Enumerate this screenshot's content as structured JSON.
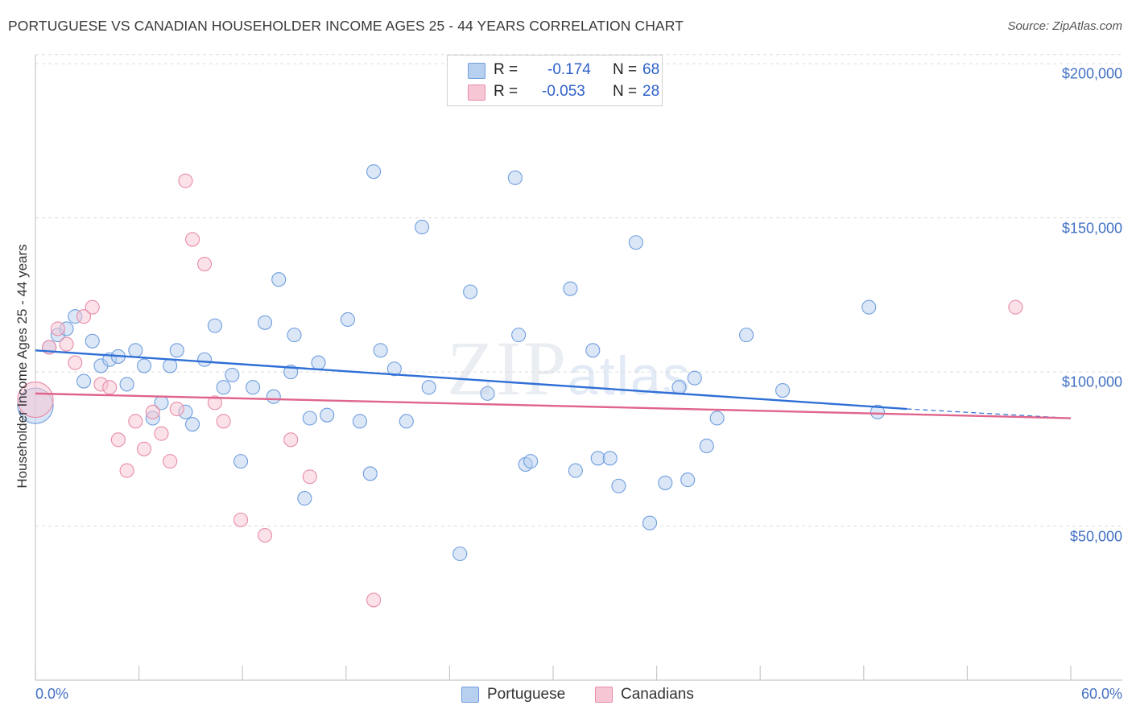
{
  "title": "PORTUGUESE VS CANADIAN HOUSEHOLDER INCOME AGES 25 - 44 YEARS CORRELATION CHART",
  "source": "Source: ZipAtlas.com",
  "watermark": {
    "left": "ZIP",
    "right": "atlas"
  },
  "legend": {
    "rows": [
      {
        "r_label": "R =",
        "r_value": "-0.174",
        "n_label": "N =",
        "n_value": "68",
        "color": "#b8d0f0",
        "border": "#6f9ede"
      },
      {
        "r_label": "R =",
        "r_value": "-0.053",
        "n_label": "N =",
        "n_value": "28",
        "color": "#f7c6d4",
        "border": "#e88ca8"
      }
    ]
  },
  "bottom_legend": [
    {
      "label": "Portuguese",
      "color": "#b8d0f0",
      "border": "#6f9ede"
    },
    {
      "label": "Canadians",
      "color": "#f7c6d4",
      "border": "#e88ca8"
    }
  ],
  "chart_data": {
    "type": "scatter",
    "title": "PORTUGUESE VS CANADIAN HOUSEHOLDER INCOME AGES 25 - 44 YEARS CORRELATION CHART",
    "xlabel": "",
    "ylabel": "Householder Income Ages 25 - 44 years",
    "xlim": [
      0,
      60
    ],
    "ylim": [
      0,
      205000
    ],
    "x_tick_labels": [
      "0.0%",
      "60.0%"
    ],
    "y_ticks": [
      50000,
      100000,
      150000,
      200000
    ],
    "y_tick_labels": [
      "$50,000",
      "$100,000",
      "$150,000",
      "$200,000"
    ],
    "grid": "horizontal dashed",
    "legend_position": "top-center",
    "series": [
      {
        "name": "Portuguese",
        "color": "#6f9ede",
        "fill": "#b8d0f0",
        "line_color": "#2f6fd6",
        "trend": {
          "x": [
            0,
            50.5
          ],
          "y": [
            107000,
            88000
          ],
          "dashed_to": [
            60,
            85000
          ]
        },
        "points": [
          [
            0.0,
            89000,
            "large"
          ],
          [
            0.8,
            108000
          ],
          [
            1.3,
            112000
          ],
          [
            1.8,
            114000
          ],
          [
            2.3,
            118000
          ],
          [
            2.8,
            97000
          ],
          [
            3.3,
            110000
          ],
          [
            3.8,
            102000
          ],
          [
            4.3,
            104000
          ],
          [
            4.8,
            105000
          ],
          [
            5.3,
            96000
          ],
          [
            5.8,
            107000
          ],
          [
            6.3,
            102000
          ],
          [
            6.8,
            85000
          ],
          [
            7.3,
            90000
          ],
          [
            7.8,
            102000
          ],
          [
            8.2,
            107000
          ],
          [
            8.7,
            87000
          ],
          [
            9.1,
            83000
          ],
          [
            9.8,
            104000
          ],
          [
            10.4,
            115000
          ],
          [
            10.9,
            95000
          ],
          [
            11.4,
            99000
          ],
          [
            11.9,
            71000
          ],
          [
            12.6,
            95000
          ],
          [
            13.3,
            116000
          ],
          [
            13.8,
            92000
          ],
          [
            14.1,
            130000
          ],
          [
            14.8,
            100000
          ],
          [
            15.0,
            112000
          ],
          [
            15.6,
            59000
          ],
          [
            15.9,
            85000
          ],
          [
            16.4,
            103000
          ],
          [
            16.9,
            86000
          ],
          [
            18.1,
            117000
          ],
          [
            18.8,
            84000
          ],
          [
            19.4,
            67000
          ],
          [
            19.6,
            165000
          ],
          [
            20.0,
            107000
          ],
          [
            20.8,
            101000
          ],
          [
            21.5,
            84000
          ],
          [
            22.4,
            147000
          ],
          [
            22.8,
            95000
          ],
          [
            24.6,
            41000
          ],
          [
            25.2,
            126000
          ],
          [
            26.2,
            93000
          ],
          [
            27.8,
            163000
          ],
          [
            28.0,
            112000
          ],
          [
            28.4,
            70000
          ],
          [
            28.7,
            71000
          ],
          [
            31.0,
            127000
          ],
          [
            31.3,
            68000
          ],
          [
            32.3,
            107000
          ],
          [
            32.6,
            72000
          ],
          [
            33.3,
            72000
          ],
          [
            33.8,
            63000
          ],
          [
            34.8,
            142000
          ],
          [
            35.6,
            51000
          ],
          [
            36.5,
            64000
          ],
          [
            37.3,
            95000
          ],
          [
            37.8,
            65000
          ],
          [
            38.2,
            98000
          ],
          [
            38.9,
            76000
          ],
          [
            39.5,
            85000
          ],
          [
            41.2,
            112000
          ],
          [
            43.3,
            94000
          ],
          [
            48.3,
            121000
          ],
          [
            48.8,
            87000
          ]
        ]
      },
      {
        "name": "Canadians",
        "color": "#e88ca8",
        "fill": "#f7c6d4",
        "line_color": "#e0648c",
        "trend": {
          "x": [
            0,
            60
          ],
          "y": [
            93000,
            85000
          ]
        },
        "points": [
          [
            0.0,
            91000,
            "large"
          ],
          [
            0.8,
            108000
          ],
          [
            1.3,
            114000
          ],
          [
            1.8,
            109000
          ],
          [
            2.3,
            103000
          ],
          [
            2.8,
            118000
          ],
          [
            3.3,
            121000
          ],
          [
            3.8,
            96000
          ],
          [
            4.3,
            95000
          ],
          [
            4.8,
            78000
          ],
          [
            5.3,
            68000
          ],
          [
            5.8,
            84000
          ],
          [
            6.3,
            75000
          ],
          [
            6.8,
            87000
          ],
          [
            7.3,
            80000
          ],
          [
            7.8,
            71000
          ],
          [
            8.2,
            88000
          ],
          [
            8.7,
            162000
          ],
          [
            9.1,
            143000
          ],
          [
            9.8,
            135000
          ],
          [
            10.4,
            90000
          ],
          [
            10.9,
            84000
          ],
          [
            11.9,
            52000
          ],
          [
            13.3,
            47000
          ],
          [
            14.8,
            78000
          ],
          [
            15.9,
            66000
          ],
          [
            19.6,
            26000
          ],
          [
            56.8,
            121000
          ]
        ]
      }
    ]
  }
}
